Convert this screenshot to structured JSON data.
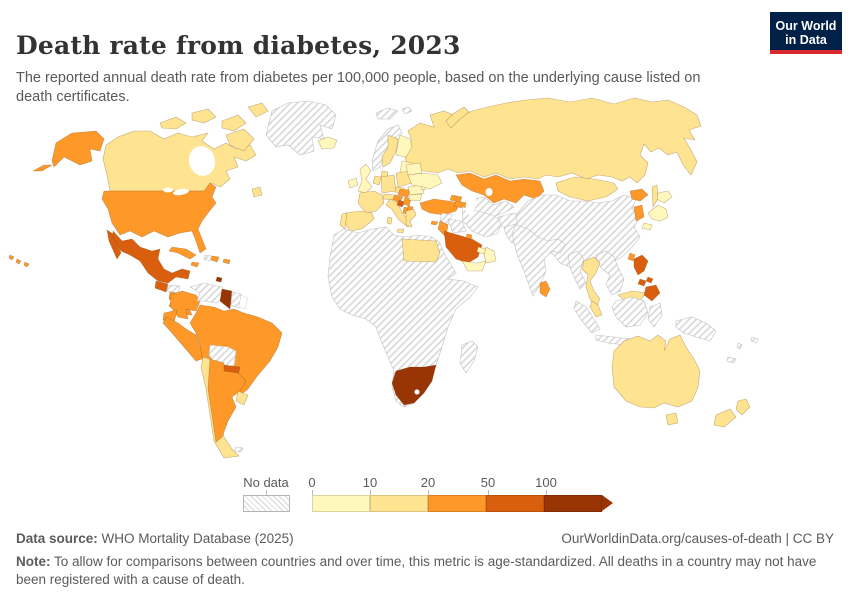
{
  "header": {
    "title": "Death rate from diabetes, 2023",
    "subtitle": "The reported annual death rate from diabetes per 100,000 people, based on the underlying cause listed on death certificates.",
    "logo": {
      "line1": "Our World",
      "line2": "in Data",
      "bg": "#002147",
      "stripe": "#d7282f"
    }
  },
  "legend": {
    "no_data_label": "No data",
    "ticks": [
      "0",
      "10",
      "20",
      "50",
      "100"
    ],
    "bin_order": [
      "c0",
      "c1",
      "c2",
      "c3",
      "c4"
    ],
    "colors": {
      "c0": "#fff7bc",
      "c1": "#fee391",
      "c2": "#fe9929",
      "c3": "#d95f0e",
      "c4": "#993404"
    },
    "no_data_stroke": "#c2c2c2"
  },
  "footer": {
    "source_label": "Data source:",
    "source_text": " WHO Mortality Database (2025)",
    "link_text": "OurWorldinData.org/causes-of-death | CC BY",
    "note_label": "Note:",
    "note_text": " To allow for comparisons between countries and over time, this metric is age-standardized. All deaths in a country may not have been registered with a cause of death."
  },
  "map": {
    "regions": [
      {
        "id": "russia",
        "bin": "c1"
      },
      {
        "id": "novaya-zemlya",
        "bin": "c1"
      },
      {
        "id": "canada",
        "bin": "c1"
      },
      {
        "id": "newfoundland",
        "bin": "c1"
      },
      {
        "id": "arctic-island-1",
        "bin": "c1"
      },
      {
        "id": "arctic-island-2",
        "bin": "c1"
      },
      {
        "id": "arctic-island-3",
        "bin": "c1"
      },
      {
        "id": "arctic-island-4",
        "bin": "c1"
      },
      {
        "id": "arctic-island-5",
        "bin": "c1"
      },
      {
        "id": "alaska",
        "bin": "c2"
      },
      {
        "id": "aleutians",
        "bin": "c2"
      },
      {
        "id": "greenland",
        "bin": "nodata"
      },
      {
        "id": "svalbard",
        "bin": "nodata"
      },
      {
        "id": "iceland",
        "bin": "c0"
      },
      {
        "id": "usa",
        "bin": "c2"
      },
      {
        "id": "hawaii",
        "bin": "c2"
      },
      {
        "id": "mexico-baja",
        "bin": "c3"
      },
      {
        "id": "mexico",
        "bin": "c3"
      },
      {
        "id": "guatemala",
        "bin": "c3"
      },
      {
        "id": "honduras",
        "bin": "nodata"
      },
      {
        "id": "nicaragua",
        "bin": "c2"
      },
      {
        "id": "costa-rica",
        "bin": "c2"
      },
      {
        "id": "panama",
        "bin": "c2"
      },
      {
        "id": "cuba",
        "bin": "c2"
      },
      {
        "id": "jamaica",
        "bin": "c2"
      },
      {
        "id": "haiti",
        "bin": "nodata"
      },
      {
        "id": "dominican-republic",
        "bin": "c2"
      },
      {
        "id": "puerto-rico",
        "bin": "c2"
      },
      {
        "id": "trinidad-and-tobago",
        "bin": "c4"
      },
      {
        "id": "colombia",
        "bin": "c2"
      },
      {
        "id": "venezuela",
        "bin": "nodata"
      },
      {
        "id": "guyana",
        "bin": "c4"
      },
      {
        "id": "suriname",
        "bin": "nodata"
      },
      {
        "id": "french-guiana",
        "bin": "blank"
      },
      {
        "id": "ecuador",
        "bin": "c2"
      },
      {
        "id": "peru",
        "bin": "c2"
      },
      {
        "id": "brazil",
        "bin": "c2"
      },
      {
        "id": "bolivia",
        "bin": "nodata"
      },
      {
        "id": "paraguay",
        "bin": "c3"
      },
      {
        "id": "chile",
        "bin": "c1"
      },
      {
        "id": "argentina",
        "bin": "c2"
      },
      {
        "id": "uruguay",
        "bin": "c1"
      },
      {
        "id": "falkland-islands",
        "bin": "nodata"
      },
      {
        "id": "ireland",
        "bin": "c0"
      },
      {
        "id": "united-kingdom",
        "bin": "c0"
      },
      {
        "id": "norway",
        "bin": "nodata"
      },
      {
        "id": "sweden",
        "bin": "c1"
      },
      {
        "id": "finland",
        "bin": "c0"
      },
      {
        "id": "denmark",
        "bin": "c1"
      },
      {
        "id": "baltic-states",
        "bin": "c0"
      },
      {
        "id": "germany",
        "bin": "c1"
      },
      {
        "id": "benelux",
        "bin": "c1"
      },
      {
        "id": "poland",
        "bin": "c1"
      },
      {
        "id": "czechia",
        "bin": "c1"
      },
      {
        "id": "austria-switzerland",
        "bin": "c1"
      },
      {
        "id": "france",
        "bin": "c1"
      },
      {
        "id": "spain",
        "bin": "c1"
      },
      {
        "id": "portugal",
        "bin": "c1"
      },
      {
        "id": "italy",
        "bin": "c1"
      },
      {
        "id": "sicily",
        "bin": "c1"
      },
      {
        "id": "sardinia",
        "bin": "c1"
      },
      {
        "id": "hungary",
        "bin": "c2"
      },
      {
        "id": "croatia",
        "bin": "c2"
      },
      {
        "id": "bosnia-and-herzegovina",
        "bin": "c3"
      },
      {
        "id": "serbia",
        "bin": "c2"
      },
      {
        "id": "albania",
        "bin": "c2"
      },
      {
        "id": "north-macedonia",
        "bin": "c2"
      },
      {
        "id": "greece",
        "bin": "c1"
      },
      {
        "id": "romania",
        "bin": "c0"
      },
      {
        "id": "bulgaria",
        "bin": "c0"
      },
      {
        "id": "moldova",
        "bin": "c0"
      },
      {
        "id": "belarus",
        "bin": "c0"
      },
      {
        "id": "ukraine",
        "bin": "c0"
      },
      {
        "id": "kazakhstan",
        "bin": "c2"
      },
      {
        "id": "uzbekistan-turkmenistan",
        "bin": "nodata"
      },
      {
        "id": "kyrgyzstan",
        "bin": "c2"
      },
      {
        "id": "tajikistan",
        "bin": "nodata"
      },
      {
        "id": "turkey",
        "bin": "c2"
      },
      {
        "id": "cyprus",
        "bin": "c2"
      },
      {
        "id": "georgia",
        "bin": "c2"
      },
      {
        "id": "armenia-azerbaijan",
        "bin": "c2"
      },
      {
        "id": "syria",
        "bin": "nodata"
      },
      {
        "id": "iraq",
        "bin": "nodata"
      },
      {
        "id": "iran",
        "bin": "nodata"
      },
      {
        "id": "afghanistan",
        "bin": "nodata"
      },
      {
        "id": "pakistan",
        "bin": "nodata"
      },
      {
        "id": "israel-jordan",
        "bin": "c2"
      },
      {
        "id": "saudi-arabia",
        "bin": "c3"
      },
      {
        "id": "kuwait",
        "bin": "c2"
      },
      {
        "id": "yemen",
        "bin": "c0"
      },
      {
        "id": "oman",
        "bin": "c0"
      },
      {
        "id": "united-arab-emirates",
        "bin": "c0"
      },
      {
        "id": "africa-mainland",
        "bin": "nodata"
      },
      {
        "id": "egypt",
        "bin": "c1"
      },
      {
        "id": "south-africa",
        "bin": "c4"
      },
      {
        "id": "madagascar",
        "bin": "nodata"
      },
      {
        "id": "china",
        "bin": "nodata"
      },
      {
        "id": "mongolia",
        "bin": "c1"
      },
      {
        "id": "north-korea-area",
        "bin": "c2"
      },
      {
        "id": "south-korea",
        "bin": "c2"
      },
      {
        "id": "sakhalin",
        "bin": "c1"
      },
      {
        "id": "japan-hokkaido",
        "bin": "c0"
      },
      {
        "id": "japan-honshu",
        "bin": "c0"
      },
      {
        "id": "japan-kyushu",
        "bin": "c0"
      },
      {
        "id": "taiwan",
        "bin": "c2"
      },
      {
        "id": "india",
        "bin": "nodata"
      },
      {
        "id": "sri-lanka",
        "bin": "c2"
      },
      {
        "id": "myanmar",
        "bin": "nodata"
      },
      {
        "id": "indochina",
        "bin": "nodata"
      },
      {
        "id": "thailand",
        "bin": "c1"
      },
      {
        "id": "malaysia-peninsula",
        "bin": "c1"
      },
      {
        "id": "malaysia-borneo",
        "bin": "c1"
      },
      {
        "id": "sumatra",
        "bin": "nodata"
      },
      {
        "id": "java",
        "bin": "nodata"
      },
      {
        "id": "kalimantan",
        "bin": "nodata"
      },
      {
        "id": "sulawesi",
        "bin": "nodata"
      },
      {
        "id": "new-guinea",
        "bin": "nodata"
      },
      {
        "id": "philippines-luzon",
        "bin": "c3"
      },
      {
        "id": "philippines-visayas-a",
        "bin": "c3"
      },
      {
        "id": "philippines-visayas-b",
        "bin": "c3"
      },
      {
        "id": "philippines-mindanao",
        "bin": "c3"
      },
      {
        "id": "australia",
        "bin": "c1"
      },
      {
        "id": "tasmania",
        "bin": "c1"
      },
      {
        "id": "new-zealand-north",
        "bin": "c1"
      },
      {
        "id": "new-zealand-south",
        "bin": "c1"
      },
      {
        "id": "fiji",
        "bin": "nodata"
      },
      {
        "id": "vanuatu",
        "bin": "nodata"
      },
      {
        "id": "new-caledonia",
        "bin": "nodata"
      }
    ]
  },
  "chart_data": {
    "type": "choropleth",
    "title": "Death rate from diabetes, 2023",
    "unit": "deaths per 100,000 people (age-standardized)",
    "legend_position": "bottom",
    "bins": [
      {
        "label": "0-10",
        "color": "#fff7bc"
      },
      {
        "label": "10-20",
        "color": "#fee391"
      },
      {
        "label": "20-50",
        "color": "#fe9929"
      },
      {
        "label": "50-100",
        "color": "#d95f0e"
      },
      {
        "label": "100+",
        "color": "#993404"
      },
      {
        "label": "No data",
        "color": "hatched"
      }
    ],
    "countries": {
      "Canada": "10-20",
      "United States": "20-50",
      "Mexico": "50-100",
      "Greenland": "No data",
      "Guatemala": "50-100",
      "Honduras": "No data",
      "Nicaragua": "20-50",
      "Costa Rica": "20-50",
      "Panama": "20-50",
      "Cuba": "20-50",
      "Jamaica": "20-50",
      "Haiti": "No data",
      "Dominican Republic": "20-50",
      "Puerto Rico": "20-50",
      "Trinidad and Tobago": "100+",
      "Colombia": "20-50",
      "Venezuela": "No data",
      "Guyana": "100+",
      "Suriname": "No data",
      "Ecuador": "20-50",
      "Peru": "20-50",
      "Brazil": "20-50",
      "Bolivia": "No data",
      "Paraguay": "50-100",
      "Chile": "10-20",
      "Argentina": "20-50",
      "Uruguay": "10-20",
      "Iceland": "0-10",
      "Ireland": "0-10",
      "United Kingdom": "0-10",
      "Norway": "No data",
      "Sweden": "10-20",
      "Finland": "0-10",
      "Denmark": "10-20",
      "Germany": "10-20",
      "France": "10-20",
      "Spain": "10-20",
      "Portugal": "10-20",
      "Italy": "10-20",
      "Poland": "10-20",
      "Czechia": "10-20",
      "Austria": "10-20",
      "Switzerland": "10-20",
      "Hungary": "20-50",
      "Croatia": "20-50",
      "Bosnia and Herzegovina": "50-100",
      "Serbia": "20-50",
      "Albania": "20-50",
      "North Macedonia": "20-50",
      "Greece": "10-20",
      "Romania": "0-10",
      "Bulgaria": "0-10",
      "Moldova": "0-10",
      "Ukraine": "0-10",
      "Belarus": "0-10",
      "Russia": "10-20",
      "Kazakhstan": "20-50",
      "Uzbekistan": "No data",
      "Turkmenistan": "No data",
      "Kyrgyzstan": "20-50",
      "Turkey": "20-50",
      "Cyprus": "20-50",
      "Georgia": "20-50",
      "Armenia": "20-50",
      "Azerbaijan": "20-50",
      "Syria": "No data",
      "Iraq": "No data",
      "Iran": "No data",
      "Afghanistan": "No data",
      "Pakistan": "No data",
      "Israel": "20-50",
      "Jordan": "20-50",
      "Saudi Arabia": "50-100",
      "Kuwait": "20-50",
      "Yemen": "0-10",
      "Oman": "0-10",
      "United Arab Emirates": "0-10",
      "Egypt": "10-20",
      "South Africa": "100+",
      "Madagascar": "No data",
      "Africa (most countries)": "No data",
      "China": "No data",
      "Mongolia": "10-20",
      "South Korea": "20-50",
      "North Korea": "20-50",
      "Japan": "0-10",
      "Taiwan": "20-50",
      "India": "No data",
      "Sri Lanka": "20-50",
      "Myanmar": "No data",
      "Thailand": "10-20",
      "Vietnam": "No data",
      "Laos": "No data",
      "Cambodia": "No data",
      "Malaysia": "10-20",
      "Indonesia": "No data",
      "Philippines": "50-100",
      "Papua New Guinea": "No data",
      "Australia": "10-20",
      "New Zealand": "10-20",
      "Fiji": "No data"
    }
  }
}
